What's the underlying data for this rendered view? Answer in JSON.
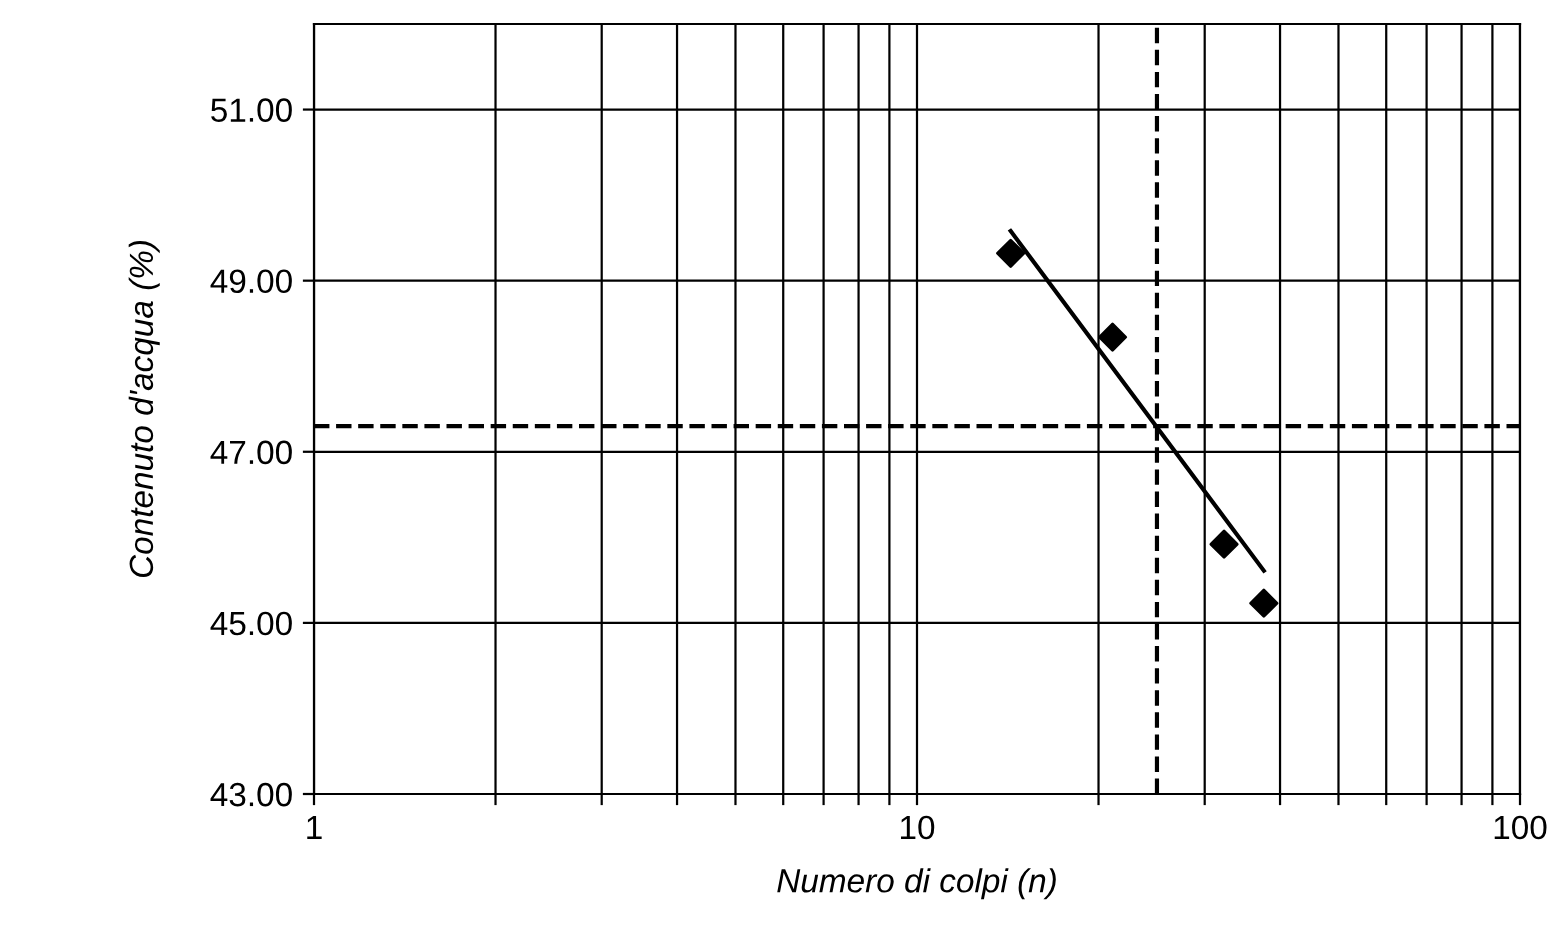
{
  "chart_data": {
    "type": "scatter",
    "xlabel": "Numero di colpi (n)",
    "ylabel": "Contenuto d'acqua (%)",
    "log": "x",
    "xlim": [
      1,
      100
    ],
    "ylim": [
      43,
      52
    ],
    "xticks": [
      1,
      {
        "value": 2,
        "label": null
      },
      {
        "value": 3,
        "label": null
      },
      {
        "value": 4,
        "label": null
      },
      {
        "value": 5,
        "label": null
      },
      {
        "value": 6,
        "label": null
      },
      {
        "value": 7,
        "label": null
      },
      {
        "value": 8,
        "label": null
      },
      {
        "value": 9,
        "label": null
      },
      10,
      {
        "value": 20,
        "label": null
      },
      {
        "value": 30,
        "label": null
      },
      {
        "value": 40,
        "label": null
      },
      {
        "value": 50,
        "label": null
      },
      {
        "value": 60,
        "label": null
      },
      {
        "value": 70,
        "label": null
      },
      {
        "value": 80,
        "label": null
      },
      {
        "value": 90,
        "label": null
      },
      100
    ],
    "yticks": [
      {
        "value": 43,
        "label": "43.00"
      },
      {
        "value": 45,
        "label": "45.00"
      },
      {
        "value": 47,
        "label": "47.00"
      },
      {
        "value": 49,
        "label": "49.00"
      },
      {
        "value": 51,
        "label": "51.00"
      }
    ],
    "grid": true,
    "legend": false,
    "series": [
      {
        "color": "#000000",
        "marker": "diamond",
        "x": [
          14.3,
          21.1,
          32.3,
          37.6
        ],
        "values": [
          49.32,
          48.34,
          45.92,
          45.23
        ]
      },
      {
        "type": "line",
        "color": "#000000",
        "marker": "none",
        "line_style": "solid",
        "x": [
          14.3,
          37.6
        ],
        "values": [
          49.58,
          45.61
        ]
      }
    ],
    "ref_lines": [
      {
        "axis": "x",
        "value": 25,
        "label": null,
        "color": "#000000",
        "line_style": "dashed"
      },
      {
        "axis": "y",
        "value": 47.3,
        "label": null,
        "color": "#000000",
        "line_style": "dashed"
      }
    ]
  }
}
